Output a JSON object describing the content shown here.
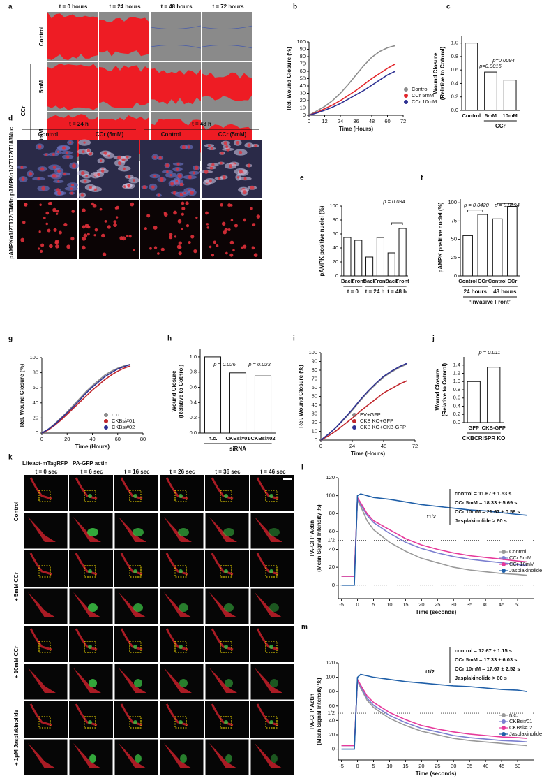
{
  "images": [
    {
      "label": "a",
      "columns": [
        "t = 0 hours",
        "t = 24 hours",
        "t = 48 hours",
        "t = 72 hours"
      ],
      "rows": [
        "Control",
        "5mM",
        "10mM"
      ],
      "group": "CCr"
    },
    {
      "label": "d",
      "time_groups": [
        "t = 24 h",
        "t = 48 h"
      ],
      "columns": [
        "Control",
        "CCr (5mM)",
        "Control",
        "CCr (5mM)"
      ],
      "rows": [
        "Actin pAMPKα1/2T172/T183Nuc",
        "pAMPKα1/2T172/T183"
      ]
    },
    {
      "label": "k",
      "channels": [
        "Lifeact-mTagRFP",
        "PA-GFP actin"
      ],
      "columns": [
        "t = 0 sec",
        "t = 6 sec",
        "t = 16 sec",
        "t = 26 sec",
        "t = 36 sec",
        "t = 46 sec"
      ],
      "rows": [
        "Control",
        "+ 5mM CCr",
        "+ 10mM CCr",
        "+ 1μM Jasplakinolide"
      ]
    }
  ],
  "chart_data": [
    {
      "label": "b",
      "type": "line",
      "xlabel": "Time (Hours)",
      "ylabel": "Rel. Wound Closure (%)",
      "x": [
        0,
        6,
        12,
        18,
        24,
        30,
        36,
        42,
        48,
        54,
        60,
        66
      ],
      "xlim": [
        0,
        72
      ],
      "xticks": [
        0,
        12,
        24,
        36,
        48,
        60,
        72
      ],
      "ylim": [
        0,
        100
      ],
      "yticks": [
        0,
        10,
        20,
        30,
        40,
        50,
        60,
        70,
        80,
        90,
        100
      ],
      "series": [
        {
          "name": "Control",
          "color": "#8c8c8c",
          "values": [
            0,
            6,
            12,
            20,
            30,
            42,
            55,
            68,
            79,
            87,
            92,
            95
          ]
        },
        {
          "name": "CCr 5mM",
          "color": "#e3262b",
          "values": [
            0,
            4,
            9,
            14,
            20,
            27,
            34,
            42,
            50,
            57,
            64,
            70
          ]
        },
        {
          "name": "CCr 10mM",
          "color": "#2e3192",
          "values": [
            0,
            3,
            7,
            11,
            16,
            22,
            28,
            34,
            41,
            48,
            55,
            60
          ]
        }
      ]
    },
    {
      "label": "c",
      "type": "bar",
      "ylabel": [
        "Wound Closure",
        "(Relative to Cotnrol)"
      ],
      "categories": [
        "Control",
        "5mM",
        "10mM"
      ],
      "values": [
        1.0,
        0.57,
        0.45
      ],
      "ylim": [
        0,
        1.1
      ],
      "yticks": [
        {
          "value": 0,
          "label": "0.0"
        },
        {
          "value": 0.2,
          "label": "0.2"
        },
        {
          "value": 0.4,
          "label": "0.4"
        },
        {
          "value": 0.6,
          "label": "0.6"
        },
        {
          "value": 0.8,
          "label": "0.8"
        },
        {
          "value": 1,
          "label": "1.0"
        }
      ],
      "groups": [
        "CCr"
      ],
      "annotations": [
        "p=0.0015",
        "p=0.0094"
      ]
    },
    {
      "label": "e",
      "type": "bar",
      "ylabel": "pAMPK positive nuclei (%)",
      "categories": [
        "Back",
        "Front",
        "Back",
        "Front",
        "Back",
        "Front"
      ],
      "values": [
        55,
        51,
        27,
        55,
        33,
        68
      ],
      "ylim": [
        0,
        100
      ],
      "yticks": [
        0,
        20,
        40,
        60,
        80,
        100
      ],
      "groups": [
        "t = 0",
        "t = 24 h",
        "t = 48 h"
      ],
      "annotations": [
        "p = 0.034"
      ]
    },
    {
      "label": "f",
      "type": "bar",
      "ylabel": "pAMPK positive nuclei (%)",
      "categories": [
        "Control",
        "CCr",
        "Control",
        "CCr"
      ],
      "values": [
        55,
        84,
        78,
        95
      ],
      "ylim": [
        0,
        105
      ],
      "yticks": [
        0,
        25,
        50,
        75,
        100
      ],
      "groups": [
        "24 hours",
        "48 hours"
      ],
      "caption": "‘Invasive Front’",
      "annotations": [
        "p = 0.0420",
        "p = 0.0094"
      ]
    },
    {
      "label": "g",
      "type": "line",
      "xlabel": "Time (Hours)",
      "ylabel": "Rel. Wound Closure (%)",
      "x": [
        0,
        5,
        10,
        15,
        20,
        25,
        30,
        35,
        40,
        45,
        50,
        55,
        60,
        65,
        70
      ],
      "xlim": [
        0,
        80
      ],
      "xticks": [
        0,
        20,
        40,
        60,
        80
      ],
      "ylim": [
        0,
        100
      ],
      "yticks": [
        0,
        20,
        40,
        60,
        80,
        100
      ],
      "series": [
        {
          "name": "n.c.",
          "color": "#8c8c8c",
          "values": [
            0,
            5,
            12,
            20,
            28,
            37,
            46,
            55,
            63,
            70,
            77,
            82,
            86,
            89,
            91
          ]
        },
        {
          "name": "CKBsi#01",
          "color": "#c1272d",
          "values": [
            0,
            4,
            10,
            17,
            25,
            33,
            41,
            49,
            57,
            64,
            71,
            77,
            82,
            86,
            89
          ]
        },
        {
          "name": "CKBsi#02",
          "color": "#2e3192",
          "values": [
            0,
            5,
            11,
            19,
            27,
            35,
            44,
            53,
            61,
            68,
            75,
            80,
            85,
            88,
            91
          ]
        }
      ]
    },
    {
      "label": "h",
      "type": "bar",
      "ylabel": [
        "Wound Closure",
        "(Relative to Cotnrol)"
      ],
      "categories": [
        "n.c.",
        "CKBsi#01",
        "CKBsi#02"
      ],
      "values": [
        1.0,
        0.79,
        0.75
      ],
      "ylim": [
        0,
        1.1
      ],
      "yticks": [
        {
          "value": 0,
          "label": "0.0"
        },
        {
          "value": 0.2,
          "label": "0.2"
        },
        {
          "value": 0.4,
          "label": "0.4"
        },
        {
          "value": 0.6,
          "label": "0.6"
        },
        {
          "value": 0.8,
          "label": "0.8"
        },
        {
          "value": 1,
          "label": "1.0"
        }
      ],
      "groups": [
        "siRNA"
      ],
      "annotations": [
        "p = 0.026",
        "p = 0.023"
      ],
      "annotation_colors": [
        "#c1272d",
        "#2e3192"
      ]
    },
    {
      "label": "i",
      "type": "line",
      "xlabel": "Time (Hours)",
      "ylabel": "Rel. Wound Closure (%)",
      "x": [
        0,
        6,
        12,
        18,
        24,
        30,
        36,
        42,
        48,
        54,
        60,
        66
      ],
      "xlim": [
        0,
        72
      ],
      "xticks": [
        0,
        24,
        48,
        72
      ],
      "ylim": [
        0,
        100
      ],
      "yticks": [
        0,
        10,
        20,
        30,
        40,
        50,
        60,
        70,
        80,
        90,
        100
      ],
      "series": [
        {
          "name": "EV+GFP",
          "color": "#8c8c8c",
          "values": [
            0,
            7,
            15,
            24,
            34,
            45,
            55,
            64,
            72,
            78,
            83,
            87
          ]
        },
        {
          "name": "CKB KO+GFP",
          "color": "#c1272d",
          "values": [
            0,
            5,
            11,
            18,
            25,
            33,
            40,
            47,
            54,
            59,
            64,
            68
          ]
        },
        {
          "name": "CKB KO+CKB-GFP",
          "color": "#2e3192",
          "values": [
            0,
            7,
            15,
            25,
            35,
            46,
            56,
            65,
            73,
            79,
            84,
            88
          ]
        }
      ]
    },
    {
      "label": "j",
      "type": "bar",
      "ylabel": [
        "Wound Closure",
        "(Relative to Cotnrol)"
      ],
      "categories": [
        "GFP",
        "CKB-GFP"
      ],
      "values": [
        1.0,
        1.35
      ],
      "ylim": [
        0,
        1.6
      ],
      "yticks": [
        {
          "value": 0,
          "label": "0.0"
        },
        {
          "value": 0.2,
          "label": "0.2"
        },
        {
          "value": 0.4,
          "label": "0.4"
        },
        {
          "value": 0.6,
          "label": "0.6"
        },
        {
          "value": 0.8,
          "label": "0.8"
        },
        {
          "value": 1,
          "label": "1.0"
        },
        {
          "value": 1.2,
          "label": "1.2"
        },
        {
          "value": 1.4,
          "label": "1.4"
        }
      ],
      "groups": [
        "CKBCRISPR KO"
      ],
      "annotations": [
        "p = 0.011"
      ]
    },
    {
      "label": "l",
      "type": "line",
      "xlabel": "Time (seconds)",
      "ylabel": [
        "PA-GFP Actin",
        "(Mean Signal Intensity %)"
      ],
      "x": [
        -5,
        -3,
        -1,
        0,
        1,
        3,
        5,
        10,
        15,
        20,
        25,
        30,
        35,
        40,
        45,
        50,
        53
      ],
      "xlim": [
        -6,
        55
      ],
      "xticks": [
        -5,
        0,
        5,
        10,
        15,
        20,
        25,
        30,
        35,
        40,
        45,
        50
      ],
      "ylim": [
        -15,
        120
      ],
      "yticks": [
        0,
        20,
        40,
        60,
        80,
        100,
        120
      ],
      "hlines": [
        0,
        {
          "value": 50,
          "label": "1/2"
        }
      ],
      "stat_title": "t1/2",
      "annotations": [
        "control = 11.67 ± 1.53 s",
        "CCr 5mM = 18.33 ± 5.69 s",
        "CCr 10mM = 21.67 ± 0.58 s",
        "Jasplakinolide > 60 s"
      ],
      "series": [
        {
          "name": "Control",
          "color": "#999999",
          "values": [
            10,
            10,
            10,
            95,
            88,
            72,
            62,
            48,
            38,
            30,
            25,
            20,
            17,
            15,
            13,
            12,
            11
          ]
        },
        {
          "name": "CCr 5mM",
          "color": "#7b7fd0",
          "values": [
            10,
            10,
            10,
            97,
            90,
            78,
            70,
            58,
            48,
            41,
            36,
            32,
            29,
            27,
            25,
            23,
            22
          ]
        },
        {
          "name": "CCr 10mM",
          "color": "#e6399b",
          "values": [
            10,
            10,
            10,
            98,
            92,
            80,
            72,
            62,
            52,
            45,
            40,
            36,
            33,
            31,
            29,
            27,
            26
          ]
        },
        {
          "name": "Jasplakinolide",
          "color": "#1f5fa8",
          "values": [
            0,
            0,
            0,
            100,
            102,
            100,
            98,
            96,
            93,
            90,
            88,
            86,
            84,
            83,
            81,
            79,
            78
          ]
        }
      ]
    },
    {
      "label": "m",
      "type": "line",
      "xlabel": "Time (seconds)",
      "ylabel": [
        "PA-GFP Actin",
        "(Mean Signal Intensity %)"
      ],
      "x": [
        -5,
        -3,
        -1,
        0,
        1,
        3,
        5,
        10,
        15,
        20,
        25,
        30,
        35,
        40,
        45,
        50,
        53
      ],
      "xlim": [
        -6,
        55
      ],
      "xticks": [
        -5,
        0,
        5,
        10,
        15,
        20,
        25,
        30,
        35,
        40,
        45,
        50
      ],
      "ylim": [
        -15,
        120
      ],
      "yticks": [
        0,
        20,
        40,
        60,
        80,
        100,
        120
      ],
      "hlines": [
        0,
        {
          "value": 50,
          "label": "1/2"
        }
      ],
      "stat_title": "t1/2",
      "annotations": [
        "control = 12.67 ± 1.15 s",
        "CCr 5mM = 17.33 ± 6.03 s",
        "CCr 10mM = 17.67 ± 2.52 s",
        "Jasplakinolide > 60 s"
      ],
      "series": [
        {
          "name": "n.c.",
          "color": "#999999",
          "values": [
            5,
            5,
            5,
            95,
            85,
            68,
            58,
            43,
            33,
            25,
            20,
            15,
            12,
            10,
            8,
            6,
            5
          ]
        },
        {
          "name": "CKBsi#01",
          "color": "#7b7fd0",
          "values": [
            5,
            5,
            5,
            96,
            87,
            71,
            61,
            47,
            37,
            29,
            24,
            19,
            16,
            14,
            12,
            11,
            10
          ]
        },
        {
          "name": "CKBsi#02",
          "color": "#e6399b",
          "values": [
            5,
            5,
            5,
            97,
            89,
            74,
            65,
            51,
            41,
            33,
            28,
            24,
            21,
            19,
            17,
            16,
            15
          ]
        },
        {
          "name": "Jasplakinolide",
          "color": "#1f5fa8",
          "values": [
            0,
            0,
            0,
            100,
            104,
            102,
            100,
            97,
            94,
            92,
            90,
            88,
            87,
            85,
            83,
            82,
            80
          ]
        }
      ]
    }
  ]
}
